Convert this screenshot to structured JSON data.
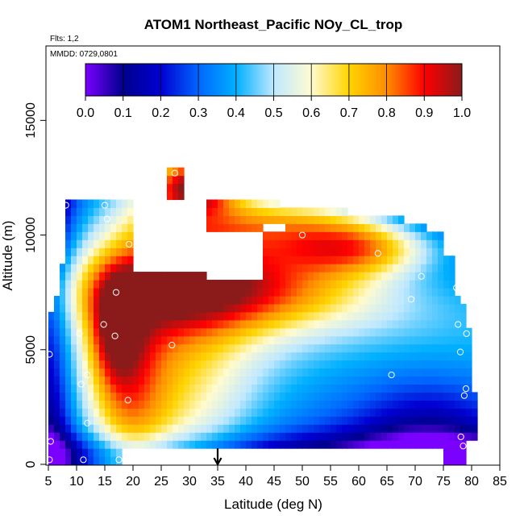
{
  "chart_data": {
    "type": "heatmap",
    "title": "ATOM1 Northeast_Pacific NOy_CL_trop",
    "flights_label": "Flts: 1,2",
    "mmdd_label": "MMDD: 0729,0801",
    "xlabel": "Latitude (deg N)",
    "ylabel": "Altitude (m)",
    "xlim": [
      5,
      85
    ],
    "ylim": [
      0,
      18000
    ],
    "x_ticks": [
      5,
      10,
      15,
      20,
      25,
      30,
      35,
      40,
      45,
      50,
      55,
      60,
      65,
      70,
      75,
      80,
      85
    ],
    "y_ticks": [
      0,
      5000,
      10000,
      15000
    ],
    "colorbar": {
      "range": [
        0,
        1
      ],
      "ticks": [
        "0.0",
        "0.1",
        "0.2",
        "0.3",
        "0.4",
        "0.5",
        "0.6",
        "0.7",
        "0.8",
        "0.9",
        "1.0"
      ],
      "colors": [
        "#7a00ff",
        "#00008c",
        "#0000d2",
        "#0066ff",
        "#00b0ff",
        "#bfe8ff",
        "#fffbd0",
        "#ffd400",
        "#ff8c00",
        "#ff0000",
        "#8b1a1a"
      ]
    },
    "marker_latitude": 35,
    "sample_points": [
      {
        "lat": 5.2,
        "alt": 200
      },
      {
        "lat": 5.4,
        "alt": 1000
      },
      {
        "lat": 5.2,
        "alt": 4800
      },
      {
        "lat": 8.1,
        "alt": 11300
      },
      {
        "lat": 10.5,
        "alt": 5700
      },
      {
        "lat": 10.8,
        "alt": 3500
      },
      {
        "lat": 11.2,
        "alt": 200
      },
      {
        "lat": 11.9,
        "alt": 3900
      },
      {
        "lat": 11.9,
        "alt": 1800
      },
      {
        "lat": 14.8,
        "alt": 6100
      },
      {
        "lat": 15.0,
        "alt": 11300
      },
      {
        "lat": 15.4,
        "alt": 10700
      },
      {
        "lat": 16.8,
        "alt": 5600
      },
      {
        "lat": 17.0,
        "alt": 7500
      },
      {
        "lat": 17.5,
        "alt": 200
      },
      {
        "lat": 18.6,
        "alt": 200
      },
      {
        "lat": 19.1,
        "alt": 2800
      },
      {
        "lat": 19.3,
        "alt": 9600
      },
      {
        "lat": 26.9,
        "alt": 5200
      },
      {
        "lat": 27.4,
        "alt": 12700
      },
      {
        "lat": 50.0,
        "alt": 10000
      },
      {
        "lat": 63.4,
        "alt": 9200
      },
      {
        "lat": 65.8,
        "alt": 3900
      },
      {
        "lat": 69.3,
        "alt": 7200
      },
      {
        "lat": 71.1,
        "alt": 8200
      },
      {
        "lat": 77.3,
        "alt": 7700
      },
      {
        "lat": 77.6,
        "alt": 6100
      },
      {
        "lat": 78.0,
        "alt": 4900
      },
      {
        "lat": 78.1,
        "alt": 1200
      },
      {
        "lat": 78.5,
        "alt": 800
      },
      {
        "lat": 78.7,
        "alt": 3000
      },
      {
        "lat": 79.0,
        "alt": 3300
      },
      {
        "lat": 79.1,
        "alt": 5700
      }
    ]
  }
}
